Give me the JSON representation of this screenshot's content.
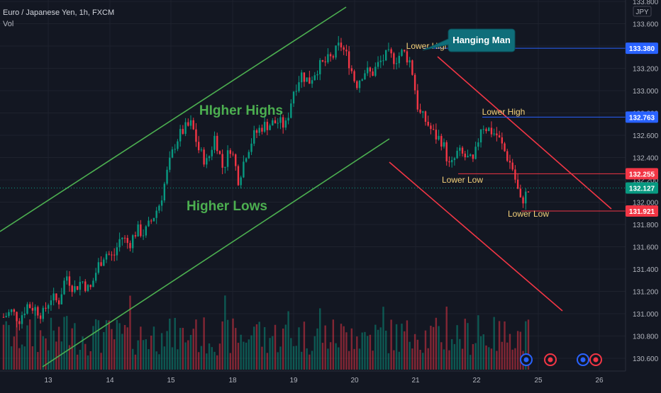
{
  "header": {
    "symbol": "Euro / Japanese Yen, 1h, FXCM",
    "volume_label": "Vol"
  },
  "chart_data": {
    "type": "candlestick",
    "currency": "JPY",
    "y_axis": {
      "min": 130.5,
      "max": 133.85,
      "tick_labels": [
        "133.800",
        "133.600",
        "133.400",
        "133.200",
        "133.000",
        "132.800",
        "132.600",
        "132.400",
        "132.200",
        "132.000",
        "131.800",
        "131.600",
        "131.400",
        "131.200",
        "131.000",
        "130.800",
        "130.600"
      ],
      "tick_values": [
        133.8,
        133.6,
        133.4,
        133.2,
        133.0,
        132.8,
        132.6,
        132.4,
        132.2,
        132.0,
        131.8,
        131.6,
        131.4,
        131.2,
        131.0,
        130.8,
        130.6
      ]
    },
    "x_axis": {
      "tick_labels": [
        "13",
        "14",
        "15",
        "18",
        "19",
        "20",
        "21",
        "22",
        "25",
        "26"
      ]
    },
    "price_marks": [
      {
        "label": "133.380",
        "value": 133.38,
        "color": "#2962ff"
      },
      {
        "label": "132.763",
        "value": 132.763,
        "color": "#2962ff"
      },
      {
        "label": "132.255",
        "value": 132.255,
        "color": "#f23645"
      },
      {
        "label": "132.127",
        "value": 132.127,
        "color": "#089981"
      },
      {
        "label": "131.921",
        "value": 131.921,
        "color": "#f23645"
      }
    ],
    "path_points": [
      130.97,
      131.02,
      130.95,
      131.08,
      131.05,
      130.99,
      131.15,
      131.1,
      131.35,
      131.22,
      131.3,
      131.2,
      131.42,
      131.55,
      131.5,
      131.7,
      131.62,
      131.75,
      131.72,
      131.85,
      132.0,
      132.3,
      132.55,
      132.65,
      132.7,
      132.45,
      132.35,
      132.6,
      132.3,
      132.5,
      132.2,
      132.45,
      132.6,
      132.68,
      132.7,
      132.72,
      132.68,
      133.0,
      133.15,
      133.08,
      133.2,
      133.25,
      133.3,
      133.42,
      133.28,
      133.05,
      133.18,
      133.15,
      133.25,
      133.32,
      133.28,
      133.35,
      133.25,
      132.8,
      132.72,
      132.6,
      132.55,
      132.3,
      132.45,
      132.4,
      132.35,
      132.7,
      132.65,
      132.6,
      132.45,
      132.3,
      132.0,
      132.1
    ],
    "annotations": [
      {
        "text": "HIgher Highs",
        "color": "#4caf50"
      },
      {
        "text": "Higher Lows",
        "color": "#4caf50"
      },
      {
        "text": "Lower High",
        "color": "#f5d17a"
      },
      {
        "text": "Lower High",
        "color": "#f5d17a"
      },
      {
        "text": "Lower Low",
        "color": "#f5d17a"
      },
      {
        "text": "Lower Low",
        "color": "#f5d17a"
      },
      {
        "text": "Hanging Man",
        "color": "#ffffff",
        "background": "#0f6e7a"
      }
    ],
    "colors": {
      "up": "#089981",
      "down": "#f23645",
      "background": "#131722",
      "trend_up": "#4caf50",
      "trend_down": "#f23645",
      "grid": "#1e222d"
    }
  }
}
